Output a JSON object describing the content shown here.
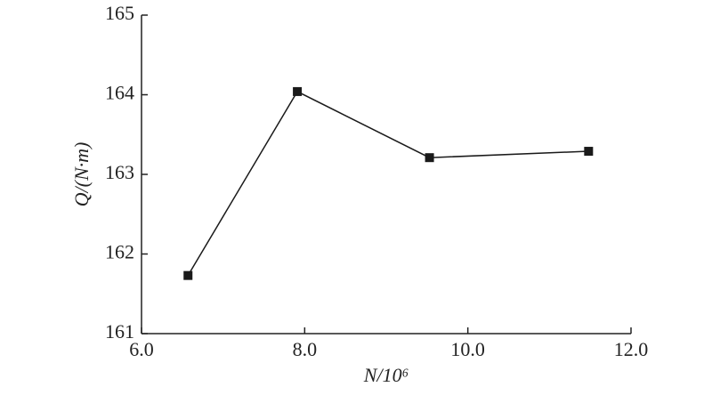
{
  "chart_data": {
    "type": "line",
    "x_label": "N/10⁶",
    "y_label": "Q/(N·m)",
    "x": [
      6.57,
      7.91,
      9.53,
      11.48
    ],
    "series": [
      {
        "color": "#1a1a1a",
        "values": [
          161.73,
          164.04,
          163.21,
          163.29
        ]
      }
    ],
    "xlim": [
      6.0,
      12.0
    ],
    "xticks": [
      {
        "value": 6,
        "label": "6.0"
      },
      {
        "value": 8,
        "label": "8.0"
      },
      {
        "value": 10,
        "label": "10.0"
      },
      {
        "value": 12,
        "label": "12.0"
      }
    ],
    "ylim": [
      161,
      165
    ],
    "yticks": [
      161,
      162,
      163,
      164,
      165
    ]
  }
}
